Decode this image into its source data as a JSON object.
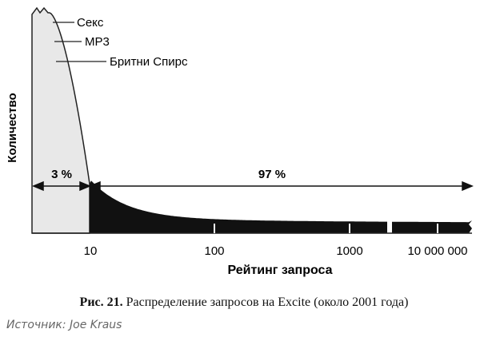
{
  "chart_data": {
    "type": "area",
    "title": "",
    "xlabel": "Рейтинг запроса",
    "ylabel": "Количество",
    "x_tick_labels": [
      "10",
      "100",
      "1000",
      "10 000 000"
    ],
    "x_scale": "log (with axis break between 1000 and 10 000 000)",
    "annotations": [
      "Секс",
      "MP3",
      "Бритни Спирс"
    ],
    "ranges": [
      {
        "label": "3 %",
        "from": "start",
        "to": "10",
        "fill": "#e8e8e8"
      },
      {
        "label": "97 %",
        "from": "10",
        "to": "10 000 000",
        "fill": "#111111"
      }
    ],
    "grid": false,
    "legend": "none"
  },
  "caption": {
    "number": "Рис. 21.",
    "text": "Распределение запросов на Excite (около 2001 года)"
  },
  "source": "Источник: Joe Kraus"
}
